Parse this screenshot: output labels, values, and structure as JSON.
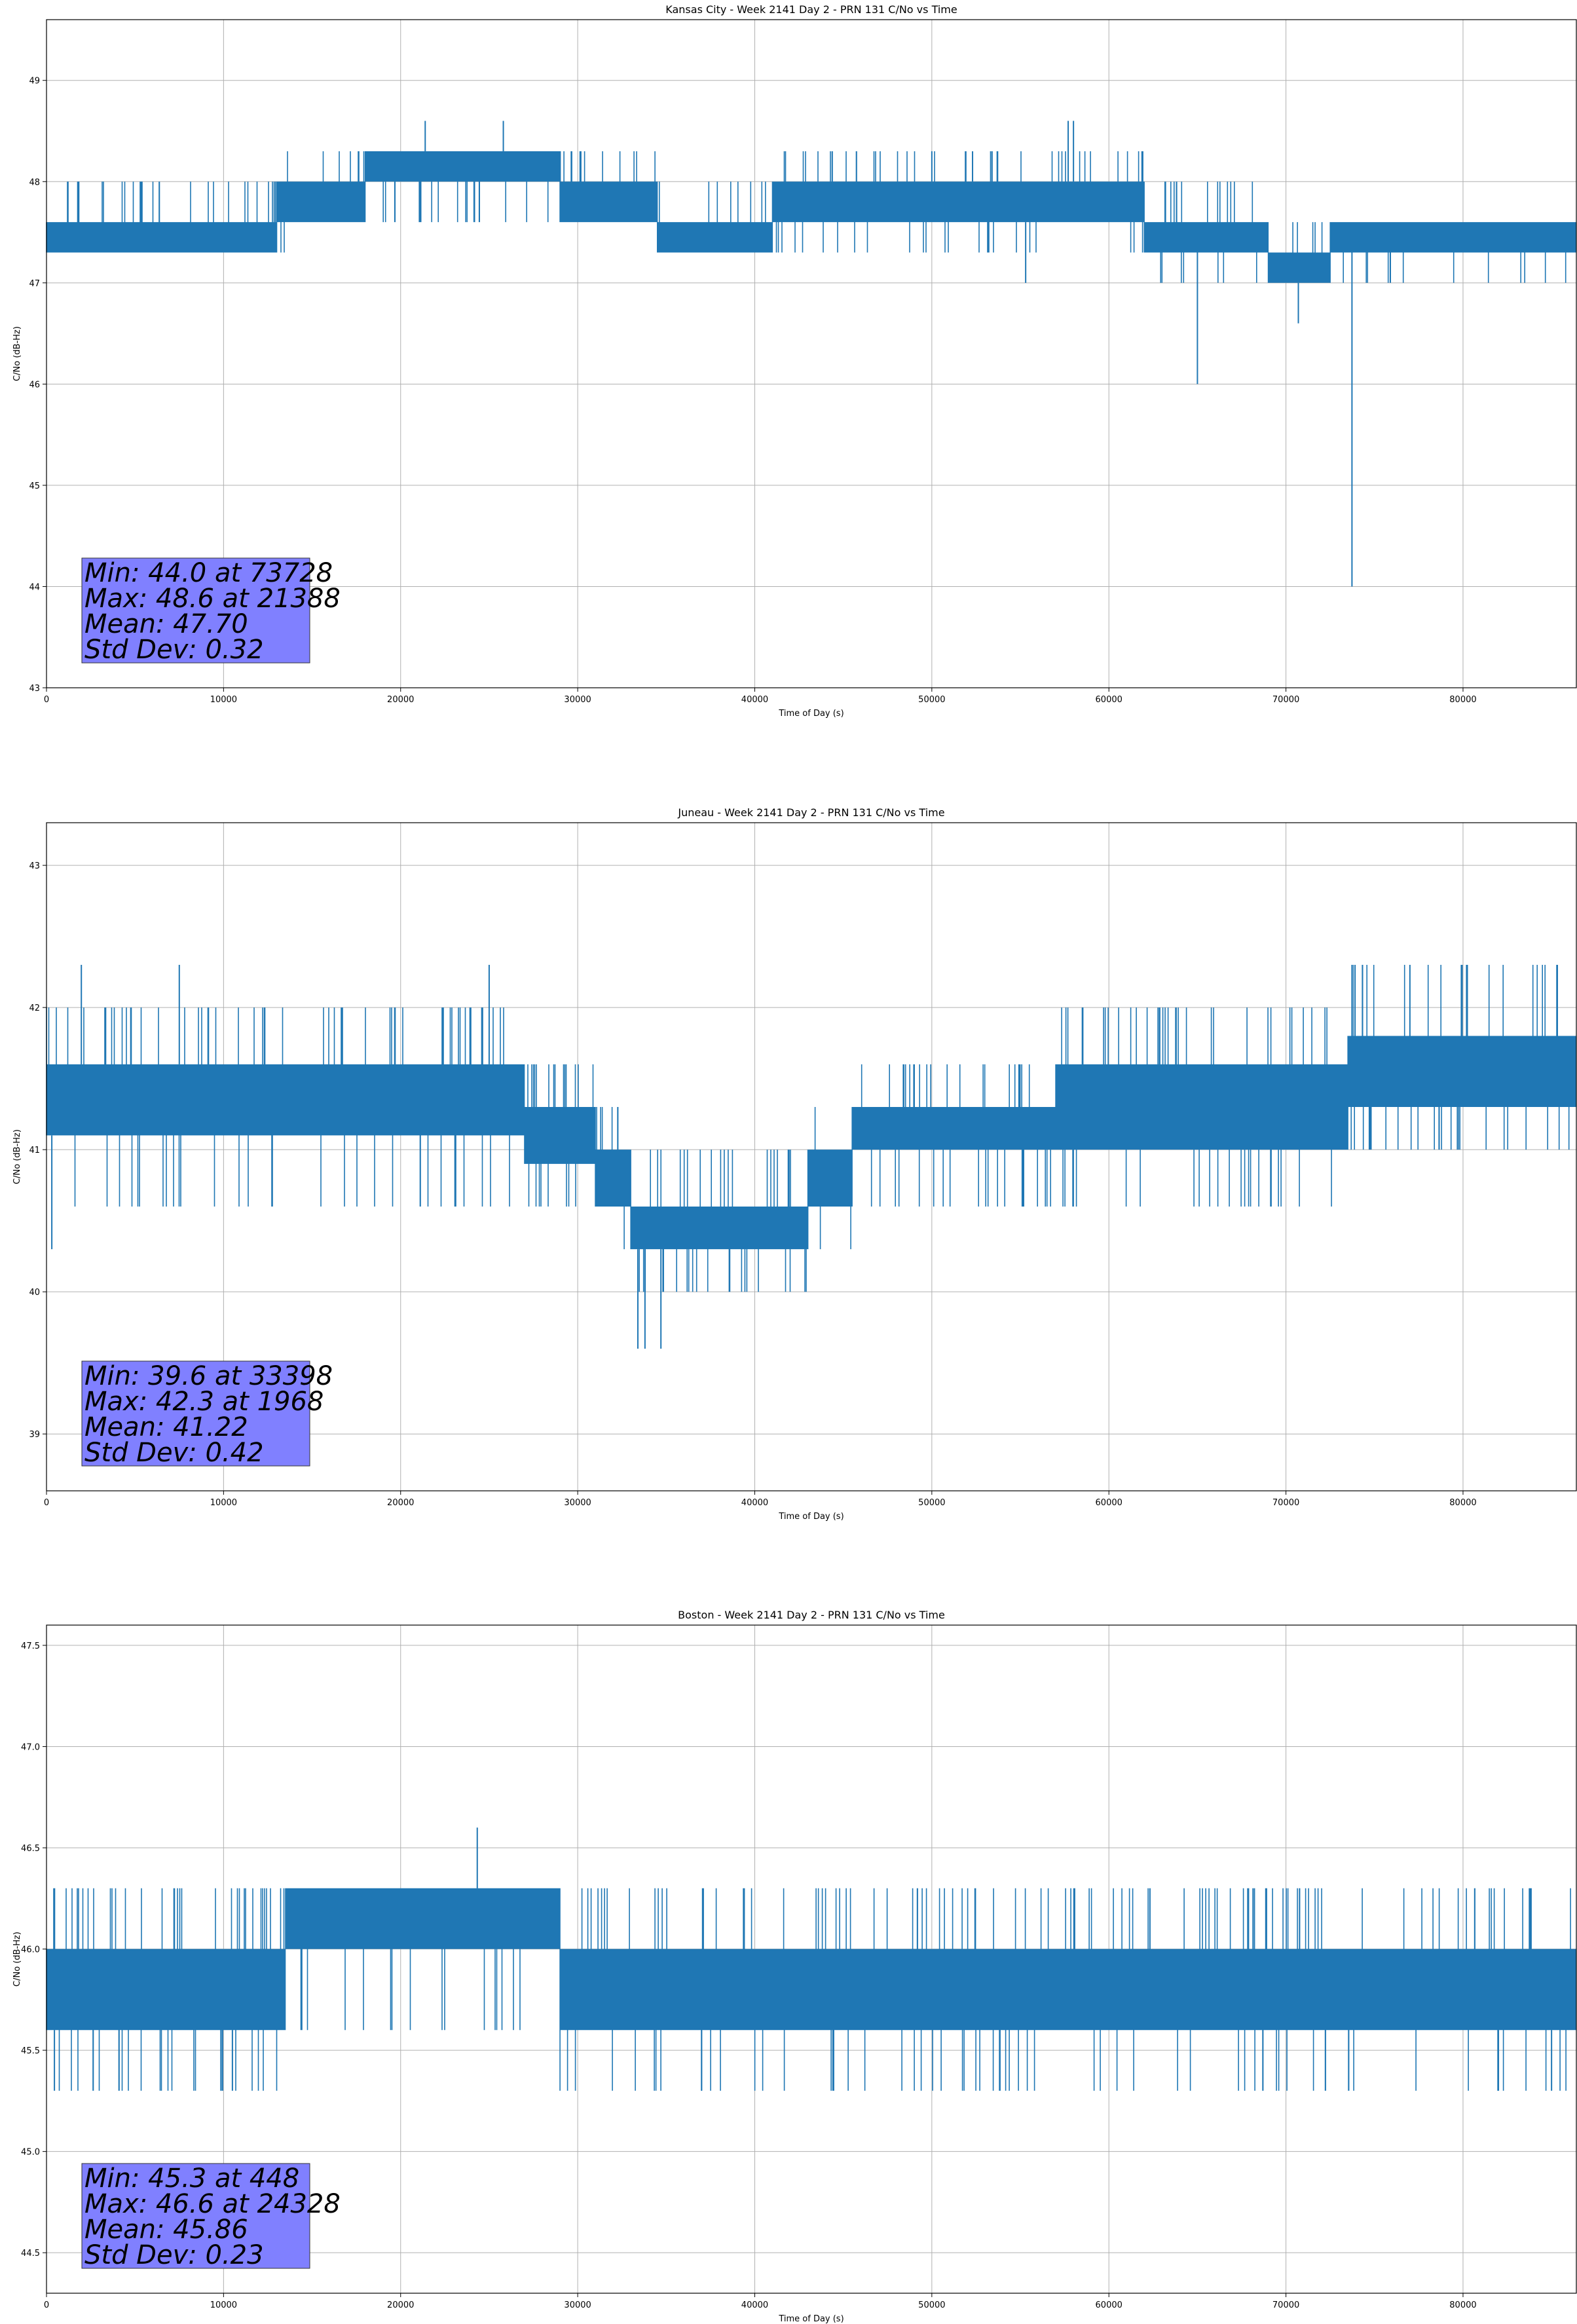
{
  "figure": {
    "background": "#ffffff",
    "line_color": "#1f77b4",
    "box_color": "#8080ff",
    "grid_color": "#b0b0b0"
  },
  "chart_data": [
    {
      "type": "line",
      "title": "Kansas City - Week 2141 Day 2 - PRN 131 C/No vs Time",
      "xlabel": "Time of Day (s)",
      "ylabel": "C/No (dB-Hz)",
      "xlim": [
        0,
        86400
      ],
      "ylim": [
        43,
        49.6
      ],
      "xticks": [
        0,
        10000,
        20000,
        30000,
        40000,
        50000,
        60000,
        70000,
        80000
      ],
      "xtick_labels": [
        "0",
        "10000",
        "20000",
        "30000",
        "40000",
        "50000",
        "60000",
        "70000",
        "80000"
      ],
      "yticks": [
        43,
        44,
        45,
        46,
        47,
        48,
        49
      ],
      "ytick_labels": [
        "43",
        "44",
        "45",
        "46",
        "47",
        "48",
        "49"
      ],
      "grid": true,
      "stats": {
        "min": 44.0,
        "min_at": 73728,
        "max": 48.6,
        "max_at": 21388,
        "mean": 47.7,
        "std": 0.32
      },
      "stats_text": [
        "Min: 44.0 at 73728",
        "Max: 48.6 at 21388",
        "Mean: 47.70",
        "Std Dev: 0.32"
      ],
      "series": [
        {
          "segments": [
            {
              "x": [
                0,
                13000
              ],
              "low": 47.3,
              "high": 47.6,
              "spike_hi": 48.0,
              "spike_lo": 47.3
            },
            {
              "x": [
                13000,
                14000
              ],
              "low": 47.6,
              "high": 48.0,
              "spike_hi": 48.3,
              "spike_lo": 47.3
            },
            {
              "x": [
                14000,
                18000
              ],
              "low": 47.6,
              "high": 48.0,
              "spike_hi": 48.3,
              "spike_lo": 47.6
            },
            {
              "x": [
                18000,
                29000
              ],
              "low": 48.0,
              "high": 48.3,
              "spike_hi": 48.3,
              "spike_lo": 47.6
            },
            {
              "x": [
                29000,
                34500
              ],
              "low": 47.6,
              "high": 48.0,
              "spike_hi": 48.3,
              "spike_lo": 47.6
            },
            {
              "x": [
                34500,
                41000
              ],
              "low": 47.3,
              "high": 47.6,
              "spike_hi": 48.0,
              "spike_lo": 47.3
            },
            {
              "x": [
                41000,
                58000
              ],
              "low": 47.6,
              "high": 48.0,
              "spike_hi": 48.3,
              "spike_lo": 47.3
            },
            {
              "x": [
                58000,
                62000
              ],
              "low": 47.6,
              "high": 48.0,
              "spike_hi": 48.3,
              "spike_lo": 47.3
            },
            {
              "x": [
                62000,
                69000
              ],
              "low": 47.3,
              "high": 47.6,
              "spike_hi": 48.0,
              "spike_lo": 47.0
            },
            {
              "x": [
                69000,
                72500
              ],
              "low": 47.0,
              "high": 47.3,
              "spike_hi": 47.6,
              "spike_lo": 47.0
            },
            {
              "x": [
                72500,
                86400
              ],
              "low": 47.3,
              "high": 47.6,
              "spike_hi": 47.6,
              "spike_lo": 47.0
            }
          ],
          "spikes": [
            [
              21388,
              48.6
            ],
            [
              25800,
              48.6
            ],
            [
              57700,
              48.6
            ],
            [
              58000,
              48.6
            ],
            [
              65000,
              46.0
            ],
            [
              70700,
              46.6
            ],
            [
              73728,
              44.0
            ],
            [
              55300,
              47.0
            ],
            [
              52300,
              48.3
            ],
            [
              50000,
              48.3
            ]
          ]
        }
      ]
    },
    {
      "type": "line",
      "title": "Juneau - Week 2141 Day 2 - PRN 131 C/No vs Time",
      "xlabel": "Time of Day (s)",
      "ylabel": "C/No (dB-Hz)",
      "xlim": [
        0,
        86400
      ],
      "ylim": [
        38.6,
        43.3
      ],
      "xticks": [
        0,
        10000,
        20000,
        30000,
        40000,
        50000,
        60000,
        70000,
        80000
      ],
      "xtick_labels": [
        "0",
        "10000",
        "20000",
        "30000",
        "40000",
        "50000",
        "60000",
        "70000",
        "80000"
      ],
      "yticks": [
        39,
        40,
        41,
        42,
        43
      ],
      "ytick_labels": [
        "39",
        "40",
        "41",
        "42",
        "43"
      ],
      "grid": true,
      "stats": {
        "min": 39.6,
        "min_at": 33398,
        "max": 42.3,
        "max_at": 1968,
        "mean": 41.22,
        "std": 0.42
      },
      "stats_text": [
        "Min: 39.6 at 33398",
        "Max: 42.3 at 1968",
        "Mean: 41.22",
        "Std Dev: 0.42"
      ],
      "series": [
        {
          "segments": [
            {
              "x": [
                0,
                27000
              ],
              "low": 41.1,
              "high": 41.6,
              "spike_hi": 42.0,
              "spike_lo": 40.6
            },
            {
              "x": [
                27000,
                31000
              ],
              "low": 40.9,
              "high": 41.3,
              "spike_hi": 41.6,
              "spike_lo": 40.6
            },
            {
              "x": [
                31000,
                33000
              ],
              "low": 40.6,
              "high": 41.0,
              "spike_hi": 41.3,
              "spike_lo": 40.3
            },
            {
              "x": [
                33000,
                38000
              ],
              "low": 40.3,
              "high": 40.6,
              "spike_hi": 41.0,
              "spike_lo": 40.0
            },
            {
              "x": [
                38000,
                40000
              ],
              "low": 40.3,
              "high": 40.6,
              "spike_hi": 41.0,
              "spike_lo": 40.0
            },
            {
              "x": [
                40000,
                43000
              ],
              "low": 40.3,
              "high": 40.6,
              "spike_hi": 41.0,
              "spike_lo": 40.0
            },
            {
              "x": [
                43000,
                45500
              ],
              "low": 40.6,
              "high": 41.0,
              "spike_hi": 41.3,
              "spike_lo": 40.3
            },
            {
              "x": [
                45500,
                57000
              ],
              "low": 41.0,
              "high": 41.3,
              "spike_hi": 41.6,
              "spike_lo": 40.6
            },
            {
              "x": [
                57000,
                73500
              ],
              "low": 41.0,
              "high": 41.6,
              "spike_hi": 42.0,
              "spike_lo": 40.6
            },
            {
              "x": [
                73500,
                86400
              ],
              "low": 41.3,
              "high": 41.8,
              "spike_hi": 42.3,
              "spike_lo": 41.0
            }
          ],
          "spikes": [
            [
              1968,
              42.3
            ],
            [
              33398,
              39.6
            ],
            [
              33800,
              39.6
            ],
            [
              34700,
              39.6
            ],
            [
              300,
              40.3
            ],
            [
              25000,
              42.3
            ],
            [
              7500,
              42.3
            ],
            [
              73900,
              42.3
            ],
            [
              77000,
              42.3
            ],
            [
              85300,
              42.3
            ],
            [
              58500,
              42.0
            ]
          ]
        }
      ]
    },
    {
      "type": "line",
      "title": "Boston - Week 2141 Day 2 - PRN 131 C/No vs Time",
      "xlabel": "Time of Day (s)",
      "ylabel": "C/No (dB-Hz)",
      "xlim": [
        0,
        86400
      ],
      "ylim": [
        44.3,
        47.6
      ],
      "xticks": [
        0,
        10000,
        20000,
        30000,
        40000,
        50000,
        60000,
        70000,
        80000
      ],
      "xtick_labels": [
        "0",
        "10000",
        "20000",
        "30000",
        "40000",
        "50000",
        "60000",
        "70000",
        "80000"
      ],
      "yticks": [
        44.5,
        45.0,
        45.5,
        46.0,
        46.5,
        47.0,
        47.5
      ],
      "ytick_labels": [
        "44.5",
        "45.0",
        "45.5",
        "46.0",
        "46.5",
        "47.0",
        "47.5"
      ],
      "grid": true,
      "stats": {
        "min": 45.3,
        "min_at": 448,
        "max": 46.6,
        "max_at": 24328,
        "mean": 45.86,
        "std": 0.23
      },
      "stats_text": [
        "Min: 45.3 at 448",
        "Max: 46.6 at 24328",
        "Mean: 45.86",
        "Std Dev: 0.23"
      ],
      "series": [
        {
          "segments": [
            {
              "x": [
                0,
                13500
              ],
              "low": 45.6,
              "high": 46.0,
              "spike_hi": 46.3,
              "spike_lo": 45.3
            },
            {
              "x": [
                13500,
                29000
              ],
              "low": 46.0,
              "high": 46.3,
              "spike_hi": 46.3,
              "spike_lo": 45.6
            },
            {
              "x": [
                29000,
                86400
              ],
              "low": 45.6,
              "high": 46.0,
              "spike_hi": 46.3,
              "spike_lo": 45.3
            }
          ],
          "spikes": [
            [
              448,
              45.3
            ],
            [
              24328,
              46.6
            ],
            [
              10500,
              45.3
            ],
            [
              37000,
              45.3
            ],
            [
              82000,
              45.3
            ],
            [
              85000,
              45.3
            ]
          ]
        }
      ]
    }
  ]
}
